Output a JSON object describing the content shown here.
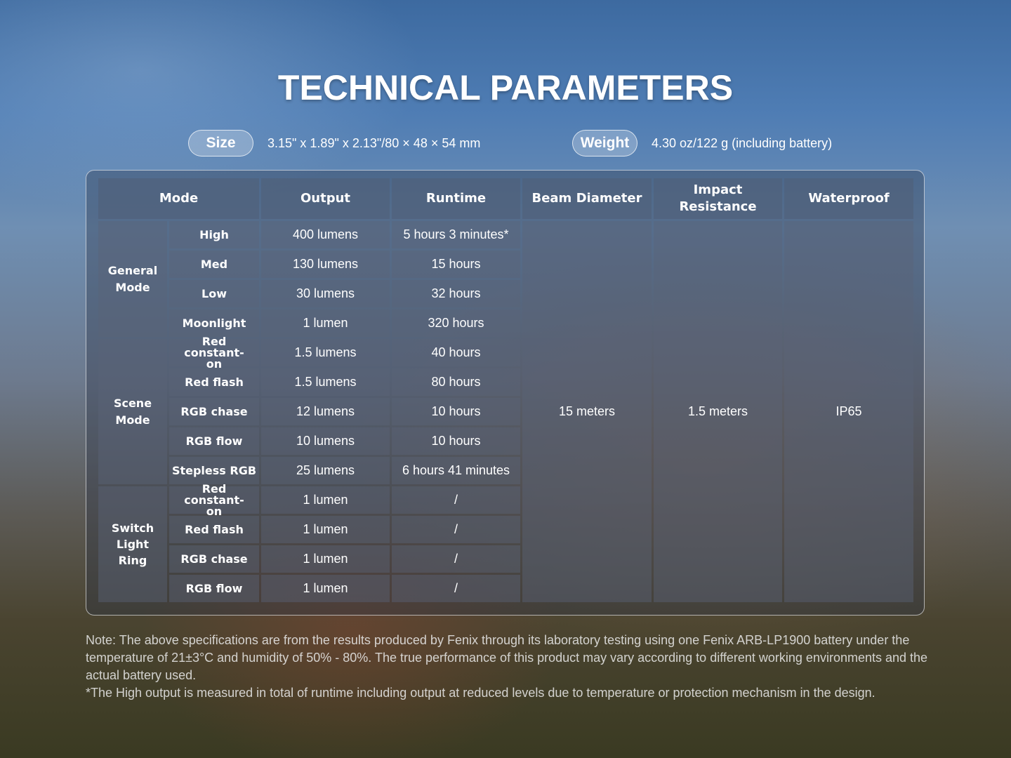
{
  "title": "TECHNICAL PARAMETERS",
  "size": {
    "label": "Size",
    "value": "3.15\" x 1.89\" x 2.13\"/80 × 48 × 54 mm"
  },
  "weight": {
    "label": "Weight",
    "value": "4.30 oz/122 g (including battery)"
  },
  "table": {
    "headers": [
      "Mode",
      "Output",
      "Runtime",
      "Beam Diameter",
      "Impact Resistance",
      "Waterproof"
    ],
    "groups": [
      {
        "name": "General Mode",
        "rows": [
          [
            "High",
            "400 lumens",
            "5 hours 3 minutes*"
          ],
          [
            "Med",
            "130 lumens",
            "15 hours"
          ],
          [
            "Low",
            "30 lumens",
            "32 hours"
          ],
          [
            "Moonlight",
            "1 lumen",
            "320 hours"
          ]
        ]
      },
      {
        "name": "Scene Mode",
        "rows": [
          [
            "Red constant-on",
            "1.5 lumens",
            "40 hours"
          ],
          [
            "Red flash",
            "1.5 lumens",
            "80 hours"
          ],
          [
            "RGB chase",
            "12 lumens",
            "10 hours"
          ],
          [
            "RGB flow",
            "10 lumens",
            "10 hours"
          ],
          [
            "Stepless RGB",
            "25 lumens",
            "6 hours 41 minutes"
          ]
        ]
      },
      {
        "name": "Switch Light Ring",
        "rows": [
          [
            "Red constant-on",
            "1 lumen",
            "/"
          ],
          [
            "Red flash",
            "1 lumen",
            "/"
          ],
          [
            "RGB chase",
            "1 lumen",
            "/"
          ],
          [
            "RGB flow",
            "1 lumen",
            "/"
          ]
        ]
      }
    ],
    "beam_diameter": "15 meters",
    "impact_resistance": "1.5 meters",
    "waterproof": "IP65"
  },
  "notes": [
    "Note: The above specifications are from the results produced by Fenix through its laboratory testing using one Fenix ARB-LP1900 battery under the temperature of 21±3°C and humidity of 50% - 80%. The true performance of this product may vary according to different working environments and the actual battery used.",
    "*The High output is measured in total of runtime including output at reduced levels due to temperature or protection mechanism in the design."
  ]
}
